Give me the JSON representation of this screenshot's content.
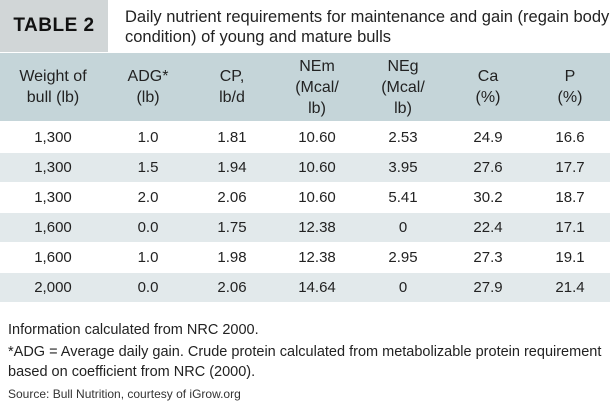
{
  "table_label": "TABLE 2",
  "caption": "Daily nutrient requirements for maintenance and gain (regain body condition) of young and mature bulls",
  "columns": [
    {
      "line1": "Weight of",
      "line2": "bull (lb)"
    },
    {
      "line1": "ADG*",
      "line2": "(lb)"
    },
    {
      "line1": "CP,",
      "line2": "lb/d"
    },
    {
      "line1": "NEm",
      "line2": "(Mcal/",
      "line3": "lb)"
    },
    {
      "line1": "NEg",
      "line2": "(Mcal/",
      "line3": "lb)"
    },
    {
      "line1": "Ca",
      "line2": "(%)"
    },
    {
      "line1": "P",
      "line2": "(%)"
    }
  ],
  "rows": [
    [
      "1,300",
      "1.0",
      "1.81",
      "10.60",
      "2.53",
      "24.9",
      "16.6"
    ],
    [
      "1,300",
      "1.5",
      "1.94",
      "10.60",
      "3.95",
      "27.6",
      "17.7"
    ],
    [
      "1,300",
      "2.0",
      "2.06",
      "10.60",
      "5.41",
      "30.2",
      "18.7"
    ],
    [
      "1,600",
      "0.0",
      "1.75",
      "12.38",
      "0",
      "22.4",
      "17.1"
    ],
    [
      "1,600",
      "1.0",
      "1.98",
      "12.38",
      "2.95",
      "27.3",
      "19.1"
    ],
    [
      "2,000",
      "0.0",
      "2.06",
      "14.64",
      "0",
      "27.9",
      "21.4"
    ]
  ],
  "notes": {
    "line1": "Information calculated from NRC 2000.",
    "line2": "*ADG = Average daily gain. Crude protein calculated from metabolizable protein requirement based on coefficient from NRC (2000).",
    "source": "Source: Bull Nutrition, courtesy of iGrow.org"
  },
  "colors": {
    "tag_bg": "#d1d6d7",
    "header_bg": "#c5d5d9",
    "row_alt_bg": "#e2e9eb"
  }
}
